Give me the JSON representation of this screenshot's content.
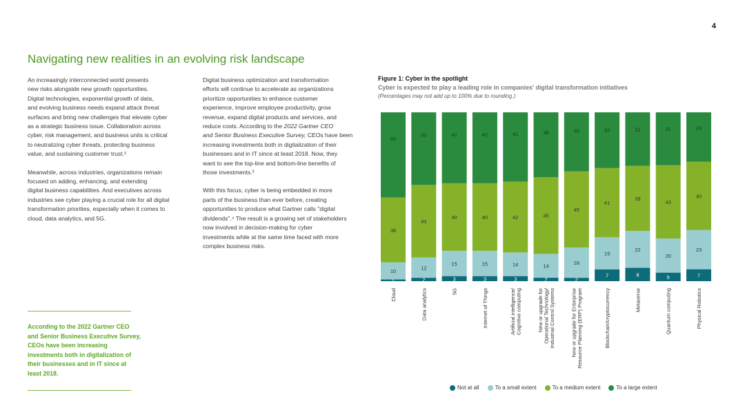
{
  "page_number": "4",
  "title": "Navigating new realities in an evolving risk landscape",
  "column1": {
    "p1_lines": [
      "An increasingly interconnected world presents",
      "new risks alongside new growth opportunities.",
      "Digital technologies, exponential growth of data,",
      "and evolving business needs expand attack threat",
      "surfaces and bring new challenges that elevate cyber",
      "as a strategic business issue. Collaboration across",
      "cyber, risk management, and business units is critical",
      "to neutralizing cyber threats, protecting business",
      "value, and sustaining customer trust.²"
    ],
    "p2_lines": [
      "Meanwhile, across industries, organizations remain",
      "focused on adding, enhancing, and extending",
      "digital business capabilities. And executives across",
      "industries see cyber playing a crucial role for all digital",
      "transformation priorities, especially when it comes to",
      "cloud, data analytics, and 5G."
    ]
  },
  "column2": {
    "p1_lines_a": [
      "Digital business optimization and transformation",
      "efforts will continue to accelerate as organizations",
      "prioritize opportunities to enhance customer",
      "experience, improve employee productivity, grow",
      "revenue, expand digital products and services, and",
      "reduce costs. According to the"
    ],
    "p1_italic_1": "2022 Gartner CEO",
    "p1_italic_2": "and Senior Business Executive Survey,",
    "p1_lines_b": [
      "CEOs have been",
      "increasing investments both in digitalization of their",
      "businesses and in IT since at least 2018. Now, they",
      "want to see the top-line and bottom-line benefits of",
      "those investments.³"
    ],
    "p2_lines": [
      "With this focus, cyber is being embedded in more",
      "parts of the business than ever before, creating",
      "opportunities to produce what Gartner calls \"digital",
      "dividends\".⁴ The result is a growing set of stakeholders",
      "now involved in decision-making for cyber",
      "investments while at the same time faced with more",
      "complex business risks."
    ]
  },
  "callout": "According to the 2022 Gartner CEO and Senior Business Executive Survey, CEOs have been increasing investments both in digitalization of their businesses and in IT since at least 2018.",
  "figure": {
    "title": "Figure 1: Cyber in the spotlight",
    "subtitle": "Cyber is expected to play a leading role in companies' digital transformation initiatives",
    "note": "(Percentages may not add up to 100% due to rounding.)"
  },
  "chart_data": {
    "type": "bar",
    "stacked": true,
    "ylim": [
      0,
      100
    ],
    "categories": [
      [
        "Cloud"
      ],
      [
        "Data analytics"
      ],
      [
        "5G"
      ],
      [
        "Internet of Things"
      ],
      [
        "Artificial intelligence/",
        "Cognitive computing"
      ],
      [
        "New or upgrade for",
        "Operational Technology/",
        "Industrial Control Systems"
      ],
      [
        "New or upgrade for Enterprise",
        "Resource Planning (ERP) Program"
      ],
      [
        "Blockchain/cryptocurrency"
      ],
      [
        "Metaverse"
      ],
      [
        "Quantum computing"
      ],
      [
        "Physical Robotics"
      ]
    ],
    "series": [
      {
        "name": "Not at all",
        "color": "#0d6b7a",
        "values": [
          1,
          2,
          3,
          3,
          3,
          2,
          2,
          7,
          8,
          5,
          7
        ]
      },
      {
        "name": "To a small extent",
        "color": "#99cdd0",
        "values": [
          10,
          12,
          15,
          15,
          14,
          14,
          18,
          19,
          22,
          20,
          23
        ]
      },
      {
        "name": "To a medium extent",
        "color": "#86b22a",
        "values": [
          38,
          43,
          40,
          40,
          42,
          45,
          45,
          41,
          39,
          43,
          40
        ]
      },
      {
        "name": "To a large extent",
        "color": "#2a8b3e",
        "values": [
          50,
          43,
          42,
          42,
          41,
          38,
          35,
          33,
          32,
          31,
          29
        ]
      }
    ],
    "legend_position": "bottom"
  }
}
